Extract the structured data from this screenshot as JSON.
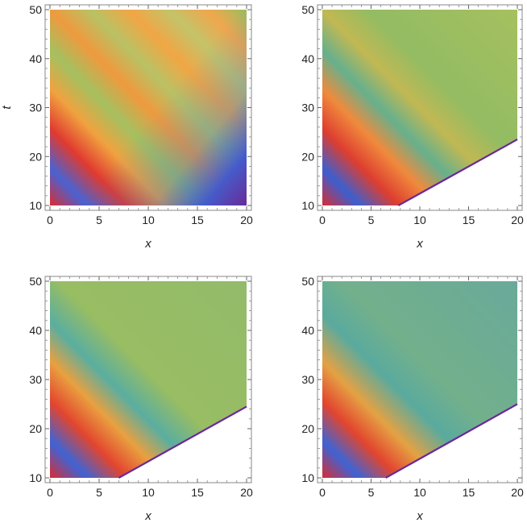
{
  "chart_data": [
    {
      "type": "heatmap",
      "title": "",
      "xlabel": "x",
      "ylabel": "t",
      "xlim": [
        0,
        20
      ],
      "ylim": [
        10,
        50
      ],
      "x_ticks": [
        "0",
        "5",
        "10",
        "15",
        "20"
      ],
      "y_ticks": [
        "10",
        "20",
        "30",
        "40",
        "50"
      ],
      "domain_cut": null,
      "bands": [
        {
          "t_at_x0": 10.6,
          "slope": 0.95,
          "kind": "red"
        },
        {
          "t_at_x0": 14.2,
          "slope": 0.95,
          "kind": "blue"
        },
        {
          "t_at_x0": 19.0,
          "slope": 0.95,
          "kind": "orange"
        },
        {
          "t_at_x0": 24.0,
          "slope": 0.95,
          "kind": "green"
        },
        {
          "t_at_x0": 29.0,
          "slope": 0.95,
          "kind": "orange"
        },
        {
          "t_at_x0": 34.0,
          "slope": 0.95,
          "kind": "green"
        }
      ]
    },
    {
      "type": "heatmap",
      "title": "",
      "xlabel": "x",
      "ylabel": "",
      "xlim": [
        0,
        20
      ],
      "ylim": [
        10,
        50
      ],
      "x_ticks": [
        "0",
        "5",
        "10",
        "15",
        "20"
      ],
      "y_ticks": [
        "10",
        "20",
        "30",
        "40",
        "50"
      ],
      "domain_cut": {
        "x_start": 7.8,
        "t_at_x20": 23.5
      },
      "bands": [
        {
          "t_at_x0": 10.0,
          "slope": 0.95,
          "kind": "red"
        },
        {
          "t_at_x0": 13.0,
          "slope": 0.95,
          "kind": "blue"
        },
        {
          "t_at_x0": 17.5,
          "slope": 0.95,
          "kind": "orange"
        },
        {
          "t_at_x0": 22.0,
          "slope": 0.95,
          "kind": "green"
        }
      ]
    },
    {
      "type": "heatmap",
      "title": "",
      "xlabel": "x",
      "ylabel": "",
      "xlim": [
        0,
        20
      ],
      "ylim": [
        10,
        50
      ],
      "x_ticks": [
        "0",
        "5",
        "10",
        "15",
        "20"
      ],
      "y_ticks": [
        "10",
        "20",
        "30",
        "40",
        "50"
      ],
      "domain_cut": {
        "x_start": 7.0,
        "t_at_x20": 24.5
      },
      "bands": [
        {
          "t_at_x0": 10.0,
          "slope": 0.95,
          "kind": "red"
        },
        {
          "t_at_x0": 13.0,
          "slope": 0.95,
          "kind": "blue"
        },
        {
          "t_at_x0": 18.0,
          "slope": 0.95,
          "kind": "orange"
        }
      ]
    },
    {
      "type": "heatmap",
      "title": "",
      "xlabel": "x",
      "ylabel": "",
      "xlim": [
        0,
        20
      ],
      "ylim": [
        10,
        50
      ],
      "x_ticks": [
        "0",
        "5",
        "10",
        "15",
        "20"
      ],
      "y_ticks": [
        "10",
        "20",
        "30",
        "40",
        "50"
      ],
      "domain_cut": {
        "x_start": 6.5,
        "t_at_x20": 25.0
      },
      "bands": [
        {
          "t_at_x0": 10.0,
          "slope": 0.95,
          "kind": "red"
        },
        {
          "t_at_x0": 13.0,
          "slope": 0.95,
          "kind": "blue"
        },
        {
          "t_at_x0": 18.0,
          "slope": 0.95,
          "kind": "orange"
        }
      ]
    }
  ],
  "colors": {
    "purple": "#6a2a96",
    "blue": "#3c5fd0",
    "teal": "#4fa8b8",
    "green": "#93b85a",
    "yellow": "#c8b44a",
    "orange": "#ee9a3a",
    "red": "#e02a2a",
    "background_top_left": "#e9a545",
    "background_top_right": "#9cba5a",
    "background_top_third": "#90b86a",
    "background_top_fourth": "#6aa99a",
    "frame": "#888888"
  }
}
